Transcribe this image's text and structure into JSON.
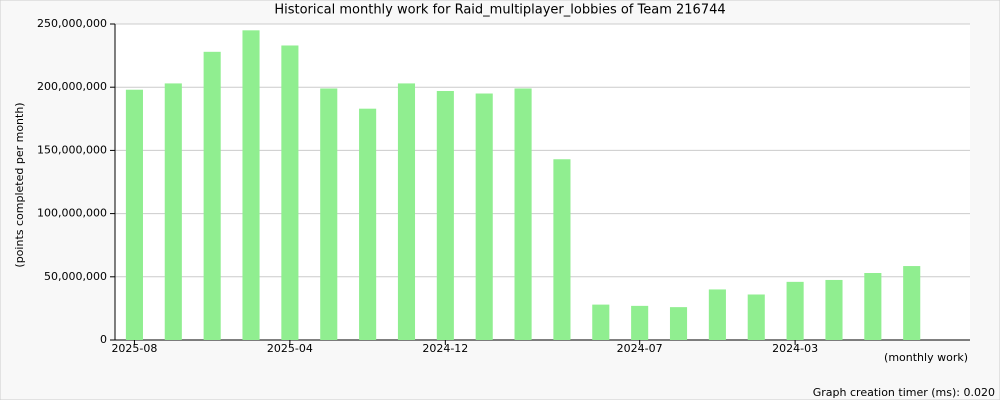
{
  "chart_data": {
    "type": "bar",
    "title": "Historical monthly work for Raid_multiplayer_lobbies of Team 216744",
    "y_label": "(points completed per month)",
    "x_label": "(monthly work)",
    "footer": "Graph creation timer (ms): 0.020",
    "categories": [
      "2025-08",
      null,
      null,
      null,
      "2025-04",
      null,
      null,
      null,
      "2024-12",
      null,
      null,
      null,
      null,
      "2024-07",
      null,
      null,
      null,
      "2024-03",
      null,
      null,
      null
    ],
    "values": [
      198000000,
      203000000,
      228000000,
      245000000,
      233000000,
      199000000,
      183000000,
      203000000,
      197000000,
      195000000,
      199000000,
      143000000,
      28000000,
      27000000,
      26000000,
      40000000,
      36000000,
      46000000,
      47500000,
      53000000,
      58500000
    ],
    "color": "#90ee90",
    "ylim": [
      0,
      250000000
    ],
    "yticks": [
      0,
      {
        "value": 50000000,
        "label": "50,000,000"
      },
      {
        "value": 100000000,
        "label": "100,000,000"
      },
      {
        "value": 150000000,
        "label": "150,000,000"
      },
      {
        "value": 200000000,
        "label": "200,000,000"
      },
      {
        "value": 250000000,
        "label": "250,000,000"
      }
    ],
    "grid": true
  }
}
